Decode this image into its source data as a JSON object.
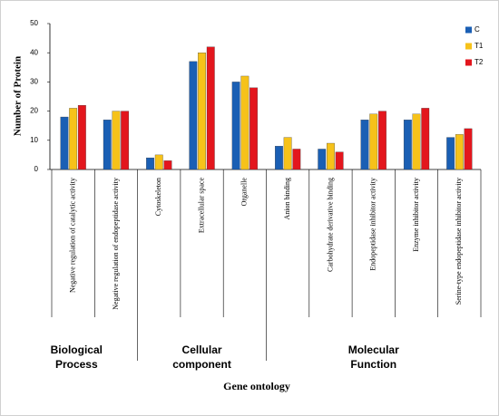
{
  "chart_data": {
    "type": "bar",
    "y_label": "Number of Protein",
    "x_label": "Gene ontology",
    "categories": [
      "Negative regulation of catalytic activity",
      "Negative regulation of endopeptidase activity",
      "Cytoskeleton",
      "Extracellular space",
      "Organelle",
      "Anion binding",
      "Carbohydrate derivative binding",
      "Endopeptidase inhibitor activity",
      "Enzyme inhibitor activity",
      "Serine-type endopeptidase inhibitor activity"
    ],
    "groups": [
      [
        "Biological",
        "Process"
      ],
      [
        "Cellular",
        "component"
      ],
      [
        "Molecular",
        "Function"
      ]
    ],
    "series": [
      {
        "name": "C",
        "color": "#1a5fb4",
        "values": [
          18,
          17,
          4,
          37,
          30,
          8,
          7,
          17,
          17,
          11
        ]
      },
      {
        "name": "T1",
        "color": "#f6c21a",
        "values": [
          21,
          20,
          5,
          40,
          32,
          11,
          9,
          19,
          19,
          12
        ]
      },
      {
        "name": "T2",
        "color": "#e3161d",
        "values": [
          22,
          20,
          3,
          42,
          28,
          7,
          6,
          20,
          21,
          14
        ]
      }
    ],
    "ylim": [
      0,
      50
    ],
    "yticks": [
      0,
      10,
      20,
      30,
      40,
      50
    ],
    "grid": false
  }
}
